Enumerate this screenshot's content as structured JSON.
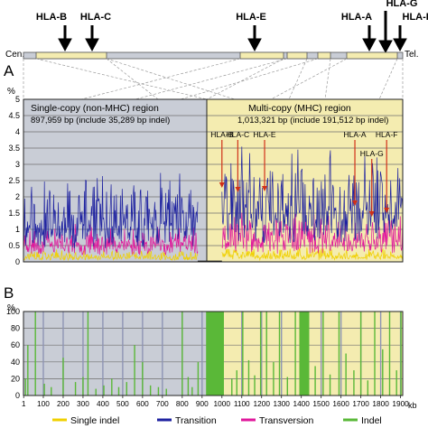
{
  "gene_header": {
    "genes": [
      "HLA-B",
      "HLA-C",
      "HLA-E",
      "HLA-A",
      "HLA-G",
      "HLA-F"
    ],
    "cen_label": "Cen.",
    "tel_label": "Tel."
  },
  "panels": {
    "a_label": "A",
    "b_label": "B",
    "unit": "%",
    "region_single": {
      "title": "Single-copy (non-MHC) region",
      "subtitle": "897,959 bp  (include 35,289 bp indel)"
    },
    "region_multi": {
      "title": "Multi-copy (MHC) region",
      "subtitle": "1,013,321 bp  (include 191,512 bp indel)"
    },
    "colors": {
      "single_region_bg": "#c9cdd6",
      "multi_region_bg": "#f4ecb0",
      "single_indel": "#f0d000",
      "transition": "#1e22a0",
      "transversion": "#e0189c",
      "indel": "#5ab838",
      "annotation": "#d03018"
    }
  },
  "chart_data": [
    {
      "type": "line",
      "panel": "A",
      "ylabel": "%",
      "ylim": [
        0,
        5
      ],
      "yticks": [
        "0",
        "0.5",
        "1",
        "1.5",
        "2",
        "2.5",
        "3",
        "3.5",
        "4",
        "4.5",
        "5"
      ],
      "xlim": [
        0,
        1911
      ],
      "single_copy_span_kb": [
        0,
        898
      ],
      "multi_copy_span_kb": [
        898,
        1911
      ],
      "series": [
        {
          "name": "Transition",
          "color": "#1e22a0",
          "seed": 11,
          "segments": [
            {
              "x0": 0,
              "x1": 878,
              "base": 1.0,
              "amp": 1.6,
              "peaks": [
                [
                  40,
                  2.6
                ],
                [
                  160,
                  1.9
                ],
                [
                  280,
                  2.7
                ],
                [
                  380,
                  2.4
                ],
                [
                  500,
                  1.7
                ],
                [
                  590,
                  2.9
                ],
                [
                  700,
                  2.2
                ],
                [
                  800,
                  1.9
                ]
              ]
            },
            {
              "x0": 1000,
              "x1": 1911,
              "base": 1.3,
              "amp": 2.0,
              "peaks": [
                [
                  1015,
                  3.2
                ],
                [
                  1060,
                  2.6
                ],
                [
                  1100,
                  4.0
                ],
                [
                  1140,
                  3.8
                ],
                [
                  1190,
                  3.1
                ],
                [
                  1230,
                  3.3
                ],
                [
                  1300,
                  3.0
                ],
                [
                  1380,
                  2.6
                ],
                [
                  1440,
                  2.3
                ],
                [
                  1500,
                  2.4
                ],
                [
                  1560,
                  3.0
                ],
                [
                  1640,
                  3.1
                ],
                [
                  1720,
                  3.4
                ],
                [
                  1760,
                  3.7
                ],
                [
                  1800,
                  3.5
                ],
                [
                  1850,
                  2.8
                ],
                [
                  1895,
                  3.2
                ]
              ]
            }
          ]
        },
        {
          "name": "Transversion",
          "color": "#e0189c",
          "seed": 23,
          "segments": [
            {
              "x0": 0,
              "x1": 878,
              "base": 0.5,
              "amp": 0.6,
              "peaks": [
                [
                  120,
                  1.0
                ],
                [
                  320,
                  1.1
                ],
                [
                  600,
                  1.0
                ],
                [
                  760,
                  0.9
                ]
              ]
            },
            {
              "x0": 1000,
              "x1": 1911,
              "base": 0.6,
              "amp": 0.9,
              "peaks": [
                [
                  1100,
                  1.6
                ],
                [
                  1140,
                  1.5
                ],
                [
                  1230,
                  1.3
                ],
                [
                  1500,
                  1.1
                ],
                [
                  1760,
                  1.4
                ],
                [
                  1850,
                  1.2
                ]
              ]
            }
          ]
        },
        {
          "name": "Single indel",
          "color": "#f0d000",
          "seed": 37,
          "segments": [
            {
              "x0": 0,
              "x1": 878,
              "base": 0.12,
              "amp": 0.25,
              "peaks": []
            },
            {
              "x0": 1000,
              "x1": 1911,
              "base": 0.15,
              "amp": 0.3,
              "peaks": []
            }
          ]
        }
      ],
      "annotations": [
        {
          "text": "HLA-B",
          "x": 1000
        },
        {
          "text": "HLA-C",
          "x": 1080
        },
        {
          "text": "HLA-E",
          "x": 1215
        },
        {
          "text": "HLA-A",
          "x": 1670
        },
        {
          "text": "HLA-G",
          "x": 1755
        },
        {
          "text": "HLA-F",
          "x": 1830
        }
      ]
    },
    {
      "type": "bar",
      "panel": "B",
      "ylabel": "%",
      "ylim": [
        0,
        100
      ],
      "yticks": [
        "0",
        "20",
        "40",
        "60",
        "80",
        "100"
      ],
      "xlim": [
        0,
        1911
      ],
      "xlabel": "kb",
      "xticks": [
        "1",
        "100",
        "200",
        "300",
        "400",
        "500",
        "600",
        "700",
        "800",
        "900",
        "1000",
        "1100",
        "1200",
        "1300",
        "1400",
        "1500",
        "1600",
        "1700",
        "1800",
        "1900"
      ],
      "xtick_values": [
        1,
        100,
        200,
        300,
        400,
        500,
        600,
        700,
        800,
        900,
        1000,
        1100,
        1200,
        1300,
        1400,
        1500,
        1600,
        1700,
        1800,
        1900
      ],
      "grey_lines_kb": [
        100,
        200,
        300,
        400,
        500,
        600,
        700,
        800,
        900,
        1000,
        1100,
        1200,
        1300,
        1400,
        1500,
        1600,
        1700,
        1800,
        1900
      ],
      "blocks": [
        {
          "x0": 920,
          "x1": 1010,
          "value": 100
        },
        {
          "x0": 1390,
          "x1": 1440,
          "value": 100
        }
      ],
      "bars": [
        {
          "x": 10,
          "value": 20
        },
        {
          "x": 22,
          "value": 60
        },
        {
          "x": 60,
          "value": 100
        },
        {
          "x": 105,
          "value": 14
        },
        {
          "x": 140,
          "value": 10
        },
        {
          "x": 200,
          "value": 45
        },
        {
          "x": 262,
          "value": 16
        },
        {
          "x": 300,
          "value": 22
        },
        {
          "x": 325,
          "value": 100
        },
        {
          "x": 365,
          "value": 8
        },
        {
          "x": 405,
          "value": 12
        },
        {
          "x": 445,
          "value": 20
        },
        {
          "x": 480,
          "value": 10
        },
        {
          "x": 520,
          "value": 16
        },
        {
          "x": 560,
          "value": 60
        },
        {
          "x": 600,
          "value": 40
        },
        {
          "x": 640,
          "value": 12
        },
        {
          "x": 680,
          "value": 10
        },
        {
          "x": 720,
          "value": 8
        },
        {
          "x": 800,
          "value": 100
        },
        {
          "x": 830,
          "value": 22
        },
        {
          "x": 850,
          "value": 10
        },
        {
          "x": 880,
          "value": 40
        },
        {
          "x": 1050,
          "value": 20
        },
        {
          "x": 1075,
          "value": 30
        },
        {
          "x": 1105,
          "value": 100
        },
        {
          "x": 1135,
          "value": 42
        },
        {
          "x": 1165,
          "value": 24
        },
        {
          "x": 1195,
          "value": 100
        },
        {
          "x": 1225,
          "value": 100
        },
        {
          "x": 1260,
          "value": 40
        },
        {
          "x": 1290,
          "value": 100
        },
        {
          "x": 1330,
          "value": 22
        },
        {
          "x": 1370,
          "value": 100
        },
        {
          "x": 1470,
          "value": 35
        },
        {
          "x": 1510,
          "value": 100
        },
        {
          "x": 1545,
          "value": 25
        },
        {
          "x": 1590,
          "value": 100
        },
        {
          "x": 1625,
          "value": 50
        },
        {
          "x": 1665,
          "value": 30
        },
        {
          "x": 1700,
          "value": 100
        },
        {
          "x": 1735,
          "value": 18
        },
        {
          "x": 1770,
          "value": 100
        },
        {
          "x": 1810,
          "value": 55
        },
        {
          "x": 1845,
          "value": 100
        },
        {
          "x": 1880,
          "value": 30
        },
        {
          "x": 1902,
          "value": 100
        }
      ]
    }
  ],
  "legend": {
    "items": [
      {
        "label": "Single indel",
        "color": "#f0d000"
      },
      {
        "label": "Transition",
        "color": "#1e22a0"
      },
      {
        "label": "Transversion",
        "color": "#e0189c"
      },
      {
        "label": "Indel",
        "color": "#5ab838"
      }
    ]
  }
}
